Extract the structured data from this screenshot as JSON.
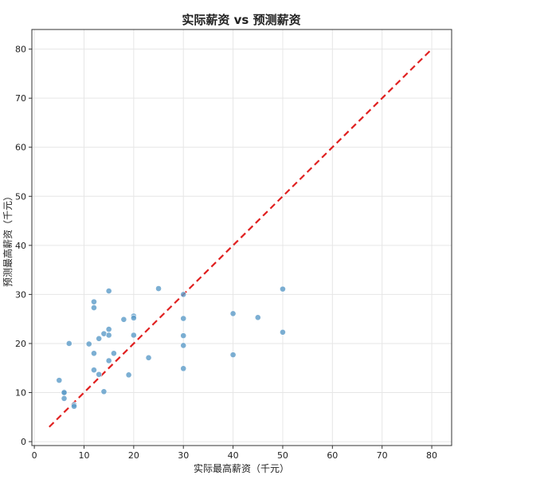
{
  "chart_data": {
    "type": "scatter",
    "title": "实际薪资 vs 预测薪资",
    "xlabel": "实际最高薪资（千元）",
    "ylabel": "预测最高薪资（千元）",
    "xlim": [
      -0.5,
      84
    ],
    "ylim": [
      -0.8,
      84
    ],
    "xticks": [
      0,
      10,
      20,
      30,
      40,
      50,
      60,
      70,
      80
    ],
    "yticks": [
      0,
      10,
      20,
      30,
      40,
      50,
      60,
      70,
      80
    ],
    "grid": true,
    "point_color": "#5b9bc8",
    "reference_line": {
      "x": [
        3,
        80
      ],
      "y": [
        3,
        80
      ],
      "color": "#e02020",
      "style": "dashed"
    },
    "points": [
      {
        "x": 5,
        "y": 12.5
      },
      {
        "x": 6,
        "y": 10.1
      },
      {
        "x": 6,
        "y": 10.0
      },
      {
        "x": 6,
        "y": 8.8
      },
      {
        "x": 7,
        "y": 20.0
      },
      {
        "x": 8,
        "y": 7.5
      },
      {
        "x": 8,
        "y": 7.2
      },
      {
        "x": 11,
        "y": 19.9
      },
      {
        "x": 12,
        "y": 28.5
      },
      {
        "x": 12,
        "y": 27.3
      },
      {
        "x": 12,
        "y": 18.0
      },
      {
        "x": 12,
        "y": 14.6
      },
      {
        "x": 13,
        "y": 21.0
      },
      {
        "x": 13,
        "y": 13.7
      },
      {
        "x": 14,
        "y": 22.0
      },
      {
        "x": 14,
        "y": 10.2
      },
      {
        "x": 15,
        "y": 30.7
      },
      {
        "x": 15,
        "y": 22.9
      },
      {
        "x": 15,
        "y": 21.7
      },
      {
        "x": 15,
        "y": 16.5
      },
      {
        "x": 16,
        "y": 18.0
      },
      {
        "x": 18,
        "y": 24.9
      },
      {
        "x": 19,
        "y": 13.6
      },
      {
        "x": 20,
        "y": 25.6
      },
      {
        "x": 20,
        "y": 25.2
      },
      {
        "x": 20,
        "y": 21.7
      },
      {
        "x": 23,
        "y": 17.1
      },
      {
        "x": 25,
        "y": 31.2
      },
      {
        "x": 30,
        "y": 30.0
      },
      {
        "x": 30,
        "y": 25.1
      },
      {
        "x": 30,
        "y": 21.6
      },
      {
        "x": 30,
        "y": 19.6
      },
      {
        "x": 30,
        "y": 14.9
      },
      {
        "x": 40,
        "y": 26.1
      },
      {
        "x": 40,
        "y": 17.7
      },
      {
        "x": 45,
        "y": 25.3
      },
      {
        "x": 50,
        "y": 31.1
      },
      {
        "x": 50,
        "y": 22.3
      }
    ]
  }
}
